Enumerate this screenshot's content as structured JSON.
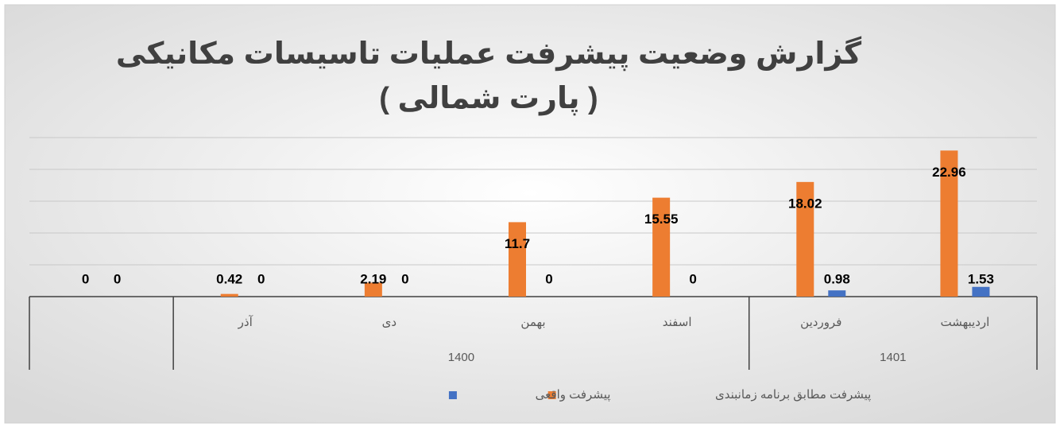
{
  "chart_data": {
    "type": "bar",
    "title": [
      "گزارش وضعیت پیشرفت عملیات تاسیسات مکانیکی",
      "( پارت شمالی )"
    ],
    "categories": [
      null,
      "آذر",
      "دی",
      "بهمن",
      "اسفند",
      "فروردین",
      "اردیبهشت"
    ],
    "category_groups": [
      null,
      "1400",
      "1400",
      "1400",
      "1400",
      "1401",
      "1401"
    ],
    "series": [
      {
        "name": "پیشرفت مطابق برنامه زمانبندی",
        "color": "#ed7d31",
        "values": [
          0,
          0.42,
          2.19,
          11.7,
          15.55,
          18.02,
          22.96
        ]
      },
      {
        "name": "پیشرفت واقعی",
        "color": "#4472c4",
        "values": [
          0,
          0,
          0,
          0,
          0,
          0.98,
          1.53
        ]
      }
    ],
    "ylim": [
      0,
      25
    ],
    "yticks": [
      0,
      5,
      10,
      15,
      20,
      25
    ],
    "grid": true,
    "legend": "bottom"
  }
}
